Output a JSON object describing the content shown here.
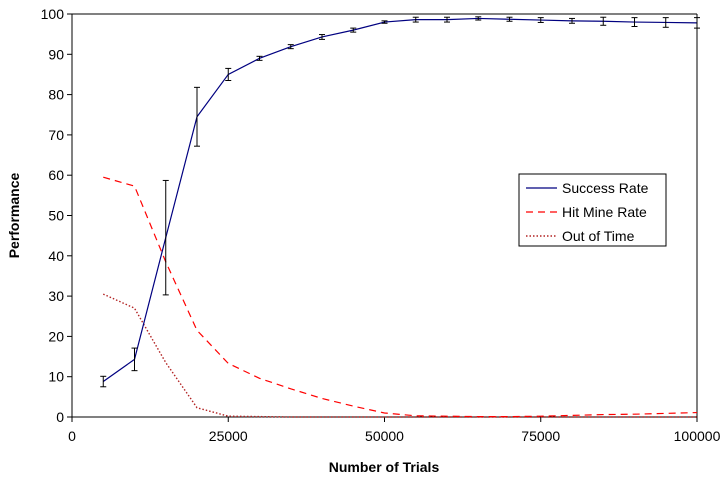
{
  "chart_data": {
    "type": "line",
    "title": "",
    "xlabel": "Number of Trials",
    "ylabel": "Performance",
    "xlim": [
      0,
      100000
    ],
    "ylim": [
      0,
      100
    ],
    "xticks": [
      "0",
      "25000",
      "50000",
      "75000",
      "100000"
    ],
    "yticks": [
      "0",
      "10",
      "20",
      "30",
      "40",
      "50",
      "60",
      "70",
      "80",
      "90",
      "100"
    ],
    "grid": false,
    "legend_position": "right",
    "x": [
      5000,
      10000,
      15000,
      20000,
      25000,
      30000,
      35000,
      40000,
      45000,
      50000,
      55000,
      60000,
      65000,
      70000,
      75000,
      80000,
      85000,
      90000,
      95000,
      100000
    ],
    "series": [
      {
        "name": "Success Rate",
        "color": "#000080",
        "style": "solid",
        "values": [
          8.8,
          14.3,
          44.5,
          74.5,
          85.0,
          89.0,
          91.9,
          94.3,
          96.0,
          98.0,
          98.6,
          98.6,
          98.9,
          98.7,
          98.5,
          98.3,
          98.2,
          98.0,
          97.9,
          97.8
        ],
        "error": [
          1.3,
          2.8,
          14.2,
          7.3,
          1.5,
          0.5,
          0.5,
          0.6,
          0.5,
          0.3,
          0.6,
          0.6,
          0.4,
          0.5,
          0.6,
          0.6,
          1.0,
          1.1,
          1.2,
          1.3
        ]
      },
      {
        "name": "Hit Mine Rate",
        "color": "#ff0000",
        "style": "dashed",
        "values": [
          59.5,
          57.3,
          38.5,
          21.5,
          13.3,
          9.6,
          7.0,
          4.6,
          2.7,
          1.0,
          0.3,
          0.2,
          0.1,
          0.1,
          0.2,
          0.4,
          0.6,
          0.7,
          0.9,
          1.1
        ]
      },
      {
        "name": "Out of Time",
        "color": "#b22222",
        "style": "dotted",
        "values": [
          30.5,
          27.0,
          13.5,
          2.3,
          0.2,
          0.1,
          0.0,
          0.0,
          0.0,
          0.0,
          0.0,
          0.0,
          0.0,
          0.0,
          0.0,
          0.0,
          0.0,
          0.0,
          0.0,
          0.0
        ]
      }
    ]
  }
}
